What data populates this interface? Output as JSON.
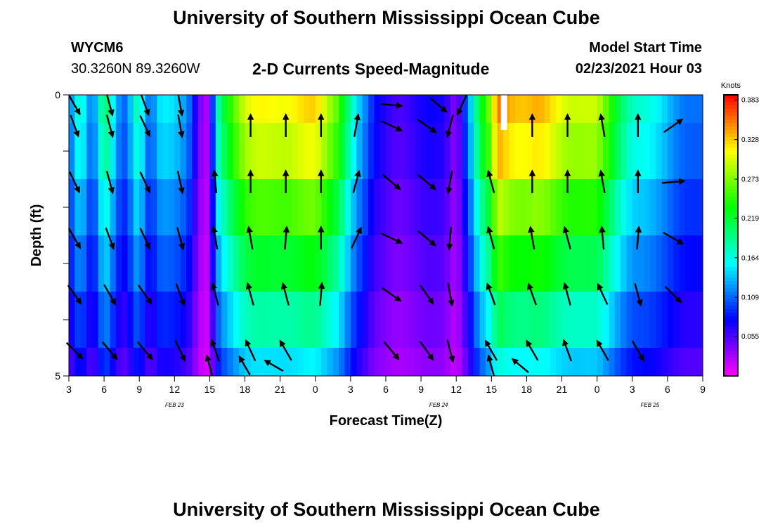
{
  "header": {
    "title": "University of Southern Mississippi Ocean Cube",
    "station": "WYCM6",
    "coords": "30.3260N 89.3260W",
    "chart_title": "2-D Currents Speed-Magnitude",
    "model_label": "Model Start Time",
    "model_time": "02/23/2021 Hour 03"
  },
  "footer": {
    "title": "University of Southern Mississippi Ocean Cube"
  },
  "chart_data": {
    "type": "heatmap",
    "title": "2-D Currents Speed-Magnitude",
    "xlabel": "Forecast Time(Z)",
    "ylabel": "Depth (ft)",
    "x_tick_labels": [
      "3",
      "6",
      "9",
      "12",
      "15",
      "18",
      "21",
      "0",
      "3",
      "6",
      "9",
      "12",
      "15",
      "18",
      "21",
      "0",
      "3",
      "6",
      "9"
    ],
    "x_range_hours": [
      0,
      54
    ],
    "day_labels": [
      {
        "label": "FEB 23",
        "hour": 9
      },
      {
        "label": "FEB 24",
        "hour": 31.5
      },
      {
        "label": "FEB 25",
        "hour": 49.5
      }
    ],
    "y_tick_labels": [
      "0",
      "5"
    ],
    "ylim": [
      0,
      5
    ],
    "colorbar": {
      "unit": "Knots",
      "min": 0.0,
      "max": 0.39,
      "ticks": [
        "0.383",
        "0.328",
        "0.273",
        "0.219",
        "0.164",
        "0.109",
        "0.055"
      ],
      "tick_values": [
        0.383,
        0.328,
        0.273,
        0.219,
        0.164,
        0.109,
        0.055
      ]
    },
    "depth_levels": [
      0.5,
      1.5,
      2.5,
      3.5,
      4.5
    ],
    "speed_profile": {
      "hours": [
        0,
        1,
        2,
        3,
        4,
        5,
        6,
        7,
        8,
        9,
        10,
        11,
        12,
        12.5,
        13.5,
        14,
        15,
        18,
        21,
        23,
        24.5,
        26,
        28,
        30,
        32,
        33,
        34,
        35,
        36,
        36.5,
        38,
        39,
        40,
        45,
        48,
        50,
        54
      ],
      "speed": [
        0.11,
        0.15,
        0.12,
        0.18,
        0.14,
        0.1,
        0.17,
        0.11,
        0.13,
        0.16,
        0.1,
        0.06,
        0.02,
        0.14,
        0.24,
        0.25,
        0.28,
        0.3,
        0.3,
        0.25,
        0.14,
        0.07,
        0.06,
        0.06,
        0.07,
        0.04,
        0.11,
        0.2,
        0.26,
        0.34,
        0.32,
        0.31,
        0.31,
        0.27,
        0.17,
        0.14,
        0.1
      ]
    },
    "depth_factor": [
      1.06,
      1.0,
      0.87,
      0.75,
      0.62,
      0.5
    ],
    "arrows": [
      {
        "hour": 0,
        "angles": [
          160,
          155,
          150,
          145,
          135
        ]
      },
      {
        "hour": 3,
        "angles": [
          165,
          165,
          160,
          150,
          140
        ]
      },
      {
        "hour": 6,
        "angles": [
          155,
          155,
          155,
          145,
          140
        ]
      },
      {
        "hour": 9,
        "angles": [
          170,
          168,
          165,
          160,
          155
        ]
      },
      {
        "hour": 12,
        "angles": [
          null,
          355,
          350,
          345,
          340
        ]
      },
      {
        "hour": 15,
        "angles": [
          0,
          0,
          350,
          345,
          335
        ]
      },
      {
        "hour": 18,
        "angles": [
          0,
          0,
          5,
          345,
          330
        ]
      },
      {
        "hour": 21,
        "angles": [
          0,
          0,
          0,
          5,
          null
        ]
      },
      {
        "hour": 24,
        "angles": [
          10,
          15,
          25,
          null,
          null
        ]
      },
      {
        "hour": 27,
        "angles": [
          115,
          130,
          115,
          125,
          140
        ]
      },
      {
        "hour": 30,
        "angles": [
          125,
          130,
          130,
          145,
          145
        ]
      },
      {
        "hour": 32,
        "angles": [
          195,
          190,
          185,
          170,
          165
        ]
      },
      {
        "hour": 35.5,
        "angles": [
          null,
          345,
          345,
          340,
          330
        ]
      },
      {
        "hour": 39,
        "angles": [
          0,
          0,
          350,
          340,
          330
        ]
      },
      {
        "hour": 42,
        "angles": [
          0,
          0,
          345,
          345,
          340
        ]
      },
      {
        "hour": 45,
        "angles": [
          350,
          350,
          355,
          335,
          330
        ]
      },
      {
        "hour": 48,
        "angles": [
          0,
          0,
          5,
          165,
          150
        ]
      },
      {
        "hour": 51,
        "angles": [
          55,
          85,
          120,
          135,
          null
        ]
      }
    ],
    "surface_arrows": [
      {
        "hour": 0,
        "angle": 150
      },
      {
        "hour": 3,
        "angle": 165
      },
      {
        "hour": 6,
        "angle": 160
      },
      {
        "hour": 9,
        "angle": 170
      },
      {
        "hour": 27,
        "angle": 95
      },
      {
        "hour": 31,
        "angle": 130
      },
      {
        "hour": 33,
        "angle": 205
      }
    ],
    "bottom_arrows": [
      {
        "hour": 11.5,
        "angle": 345
      },
      {
        "hour": 14.5,
        "angle": 330
      },
      {
        "hour": 17,
        "angle": 300
      },
      {
        "hour": 35.5,
        "angle": 345
      },
      {
        "hour": 38,
        "angle": 310
      }
    ],
    "missing_data": [
      {
        "hour": 36.8,
        "depth_from": 0,
        "depth_to": 0.5
      }
    ]
  }
}
